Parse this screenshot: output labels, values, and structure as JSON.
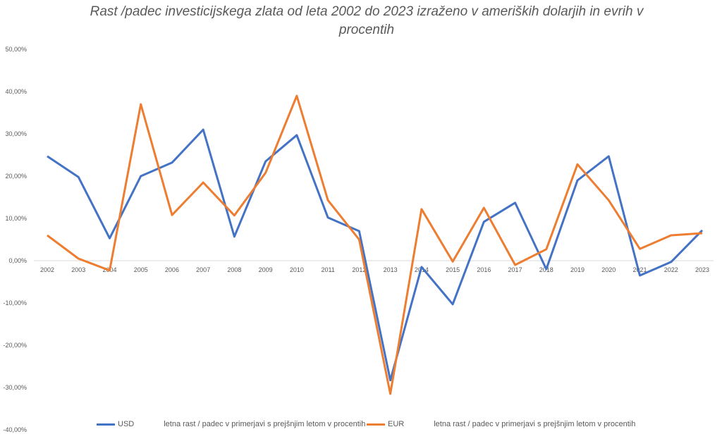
{
  "chart_data": {
    "type": "line",
    "title": "Rast /padec investicijskega zlata od leta 2002 do 2023 izraženo v ameriških dolarjih in evrih v procentih",
    "xlabel": "",
    "ylabel": "",
    "categories": [
      "2002",
      "2003",
      "2004",
      "2005",
      "2006",
      "2007",
      "2008",
      "2009",
      "2010",
      "2011",
      "2012",
      "2013",
      "2014",
      "2015",
      "2016",
      "2017",
      "2018",
      "2019",
      "2020",
      "2021",
      "2022",
      "2023"
    ],
    "ylim": [
      -40,
      50
    ],
    "yticks": [
      50,
      40,
      30,
      20,
      10,
      0,
      -10,
      -20,
      -30,
      -40
    ],
    "ytick_labels": [
      "50,00%",
      "40,00%",
      "30,00%",
      "20,00%",
      "10,00%",
      "0,00%",
      "-10,00%",
      "-20,00%",
      "-30,00%",
      "-40,00%"
    ],
    "grid": false,
    "legend_position": "bottom",
    "series": [
      {
        "name": "USD",
        "label": "USD",
        "description": "letna rast / padec v primerjavi s prejšnjim letom v procentih",
        "color": "#4472C4",
        "values": [
          24.7,
          19.8,
          5.3,
          20.0,
          23.2,
          31.0,
          5.7,
          23.5,
          29.7,
          10.2,
          7.0,
          -28.3,
          -1.5,
          -10.3,
          9.2,
          13.7,
          -2.0,
          19.0,
          24.7,
          -3.5,
          -0.3,
          7.2
        ]
      },
      {
        "name": "EUR",
        "label": "EUR",
        "description": "letna rast / padec v primerjavi s prejšnjim letom v procentih",
        "color": "#ED7D31",
        "values": [
          6.0,
          0.5,
          -2.3,
          37.0,
          10.8,
          18.5,
          10.7,
          20.8,
          39.0,
          14.3,
          5.0,
          -31.5,
          12.2,
          -0.2,
          12.5,
          -1.0,
          2.7,
          22.8,
          14.3,
          2.8,
          6.0,
          6.5
        ]
      }
    ]
  }
}
